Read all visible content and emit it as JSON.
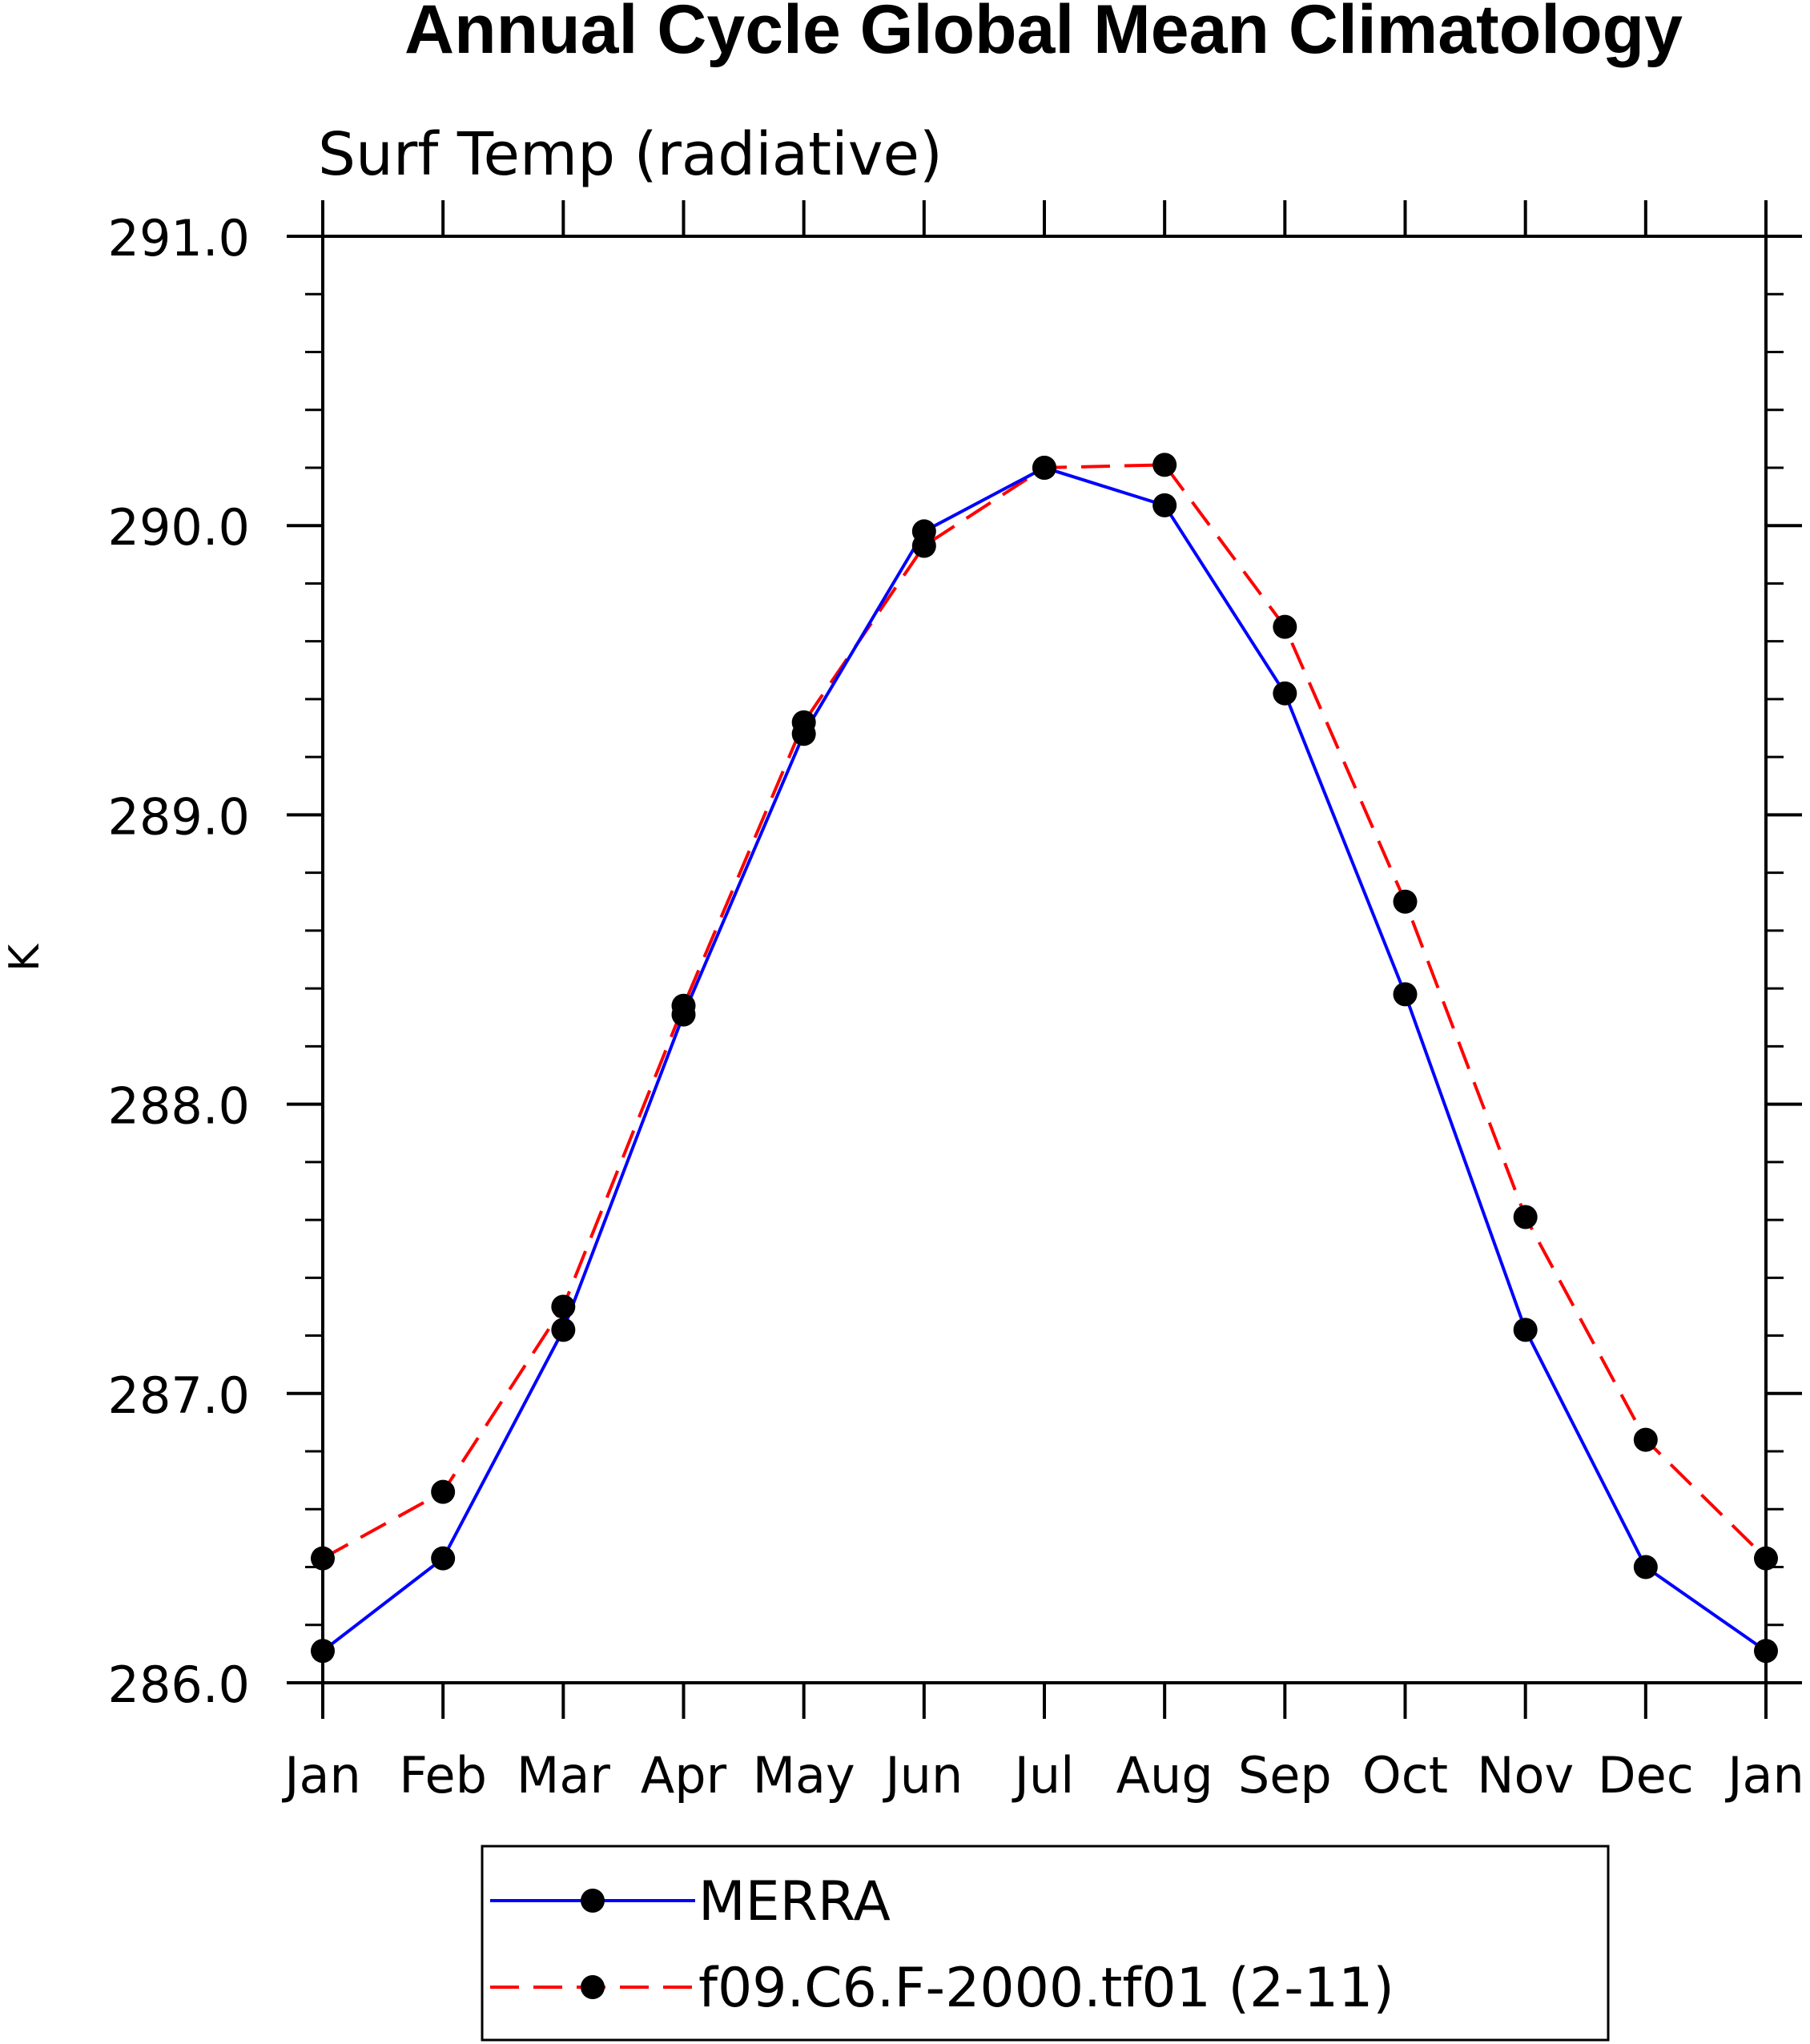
{
  "chart_data": {
    "type": "line",
    "title": "Annual Cycle Global Mean Climatology",
    "subtitle": "Surf Temp (radiative)",
    "xlabel": "",
    "ylabel": "K",
    "categories": [
      "Jan",
      "Feb",
      "Mar",
      "Apr",
      "May",
      "Jun",
      "Jul",
      "Aug",
      "Sep",
      "Oct",
      "Nov",
      "Dec",
      "Jan"
    ],
    "yticks": [
      "286.0",
      "287.0",
      "288.0",
      "289.0",
      "290.0",
      "291.0"
    ],
    "ylim": [
      286.0,
      291.0
    ],
    "grid": false,
    "legend_position": "bottom",
    "series": [
      {
        "name": "MERRA",
        "color": "#0000ff",
        "line_style": "solid",
        "marker": "filled-circle",
        "values": [
          286.11,
          286.43,
          287.22,
          288.31,
          289.28,
          289.98,
          290.2,
          290.07,
          289.42,
          288.38,
          287.22,
          286.4,
          286.11
        ]
      },
      {
        "name": "f09.C6.F-2000.tf01 (2-11)",
        "color": "#ff0000",
        "line_style": "dashed",
        "marker": "filled-circle",
        "values": [
          286.43,
          286.66,
          287.3,
          288.34,
          289.32,
          289.93,
          290.2,
          290.21,
          289.65,
          288.7,
          287.61,
          286.84,
          286.43
        ]
      }
    ]
  }
}
